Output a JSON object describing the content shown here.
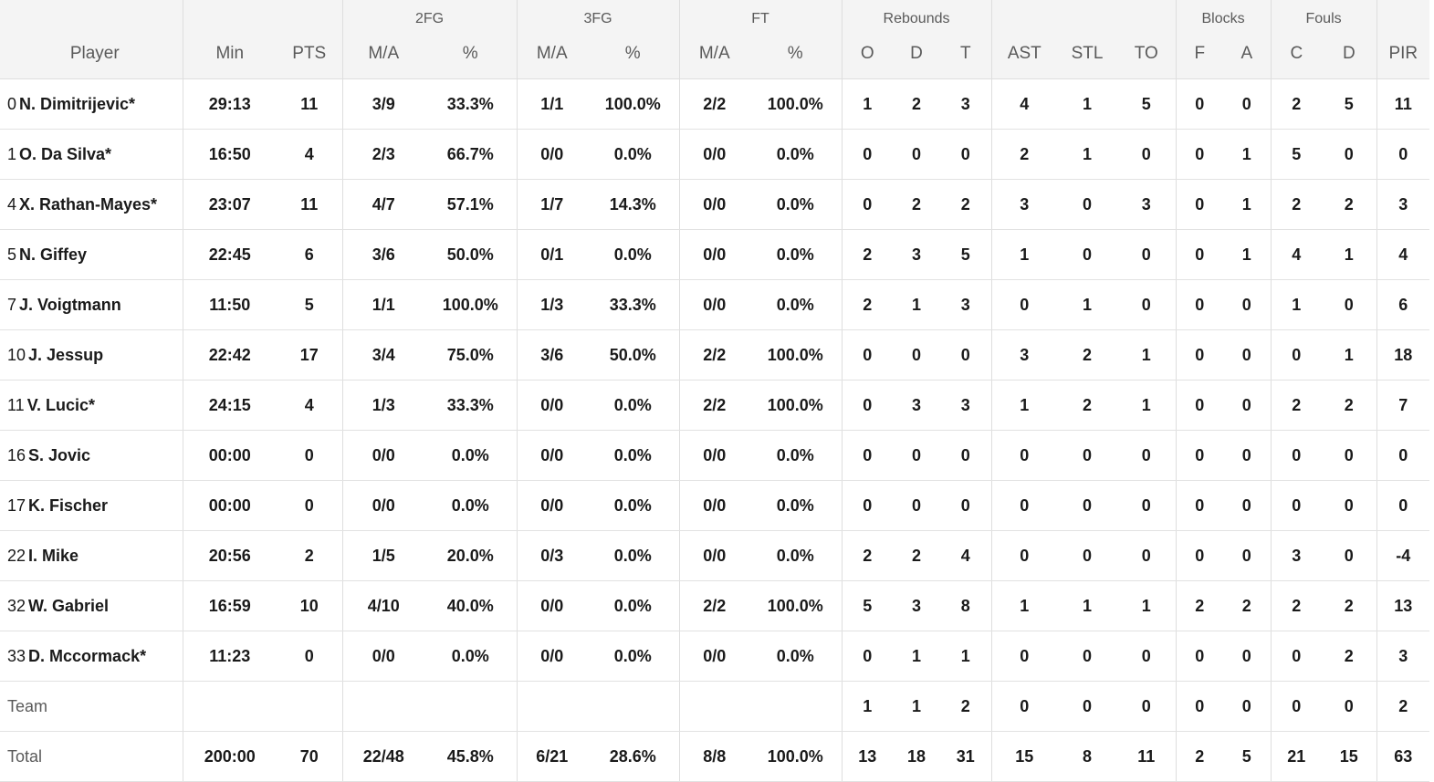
{
  "header": {
    "groups": {
      "fg2": "2FG",
      "fg3": "3FG",
      "ft": "FT",
      "rebounds": "Rebounds",
      "blocks": "Blocks",
      "fouls": "Fouls"
    },
    "columns": [
      "Player",
      "Min",
      "PTS",
      "M/A",
      "%",
      "M/A",
      "%",
      "M/A",
      "%",
      "O",
      "D",
      "T",
      "AST",
      "STL",
      "TO",
      "F",
      "A",
      "C",
      "D",
      "PIR"
    ]
  },
  "players": [
    {
      "number": "0",
      "name": "N. Dimitrijevic*",
      "stats": [
        "29:13",
        "11",
        "3/9",
        "33.3%",
        "1/1",
        "100.0%",
        "2/2",
        "100.0%",
        "1",
        "2",
        "3",
        "4",
        "1",
        "5",
        "0",
        "0",
        "2",
        "5",
        "11"
      ]
    },
    {
      "number": "1",
      "name": "O. Da Silva*",
      "stats": [
        "16:50",
        "4",
        "2/3",
        "66.7%",
        "0/0",
        "0.0%",
        "0/0",
        "0.0%",
        "0",
        "0",
        "0",
        "2",
        "1",
        "0",
        "0",
        "1",
        "5",
        "0",
        "0"
      ]
    },
    {
      "number": "4",
      "name": "X. Rathan-Mayes*",
      "stats": [
        "23:07",
        "11",
        "4/7",
        "57.1%",
        "1/7",
        "14.3%",
        "0/0",
        "0.0%",
        "0",
        "2",
        "2",
        "3",
        "0",
        "3",
        "0",
        "1",
        "2",
        "2",
        "3"
      ]
    },
    {
      "number": "5",
      "name": "N. Giffey",
      "stats": [
        "22:45",
        "6",
        "3/6",
        "50.0%",
        "0/1",
        "0.0%",
        "0/0",
        "0.0%",
        "2",
        "3",
        "5",
        "1",
        "0",
        "0",
        "0",
        "1",
        "4",
        "1",
        "4"
      ]
    },
    {
      "number": "7",
      "name": "J. Voigtmann",
      "stats": [
        "11:50",
        "5",
        "1/1",
        "100.0%",
        "1/3",
        "33.3%",
        "0/0",
        "0.0%",
        "2",
        "1",
        "3",
        "0",
        "1",
        "0",
        "0",
        "0",
        "1",
        "0",
        "6"
      ]
    },
    {
      "number": "10",
      "name": "J. Jessup",
      "stats": [
        "22:42",
        "17",
        "3/4",
        "75.0%",
        "3/6",
        "50.0%",
        "2/2",
        "100.0%",
        "0",
        "0",
        "0",
        "3",
        "2",
        "1",
        "0",
        "0",
        "0",
        "1",
        "18"
      ]
    },
    {
      "number": "11",
      "name": "V. Lucic*",
      "stats": [
        "24:15",
        "4",
        "1/3",
        "33.3%",
        "0/0",
        "0.0%",
        "2/2",
        "100.0%",
        "0",
        "3",
        "3",
        "1",
        "2",
        "1",
        "0",
        "0",
        "2",
        "2",
        "7"
      ]
    },
    {
      "number": "16",
      "name": "S. Jovic",
      "stats": [
        "00:00",
        "0",
        "0/0",
        "0.0%",
        "0/0",
        "0.0%",
        "0/0",
        "0.0%",
        "0",
        "0",
        "0",
        "0",
        "0",
        "0",
        "0",
        "0",
        "0",
        "0",
        "0"
      ]
    },
    {
      "number": "17",
      "name": "K. Fischer",
      "stats": [
        "00:00",
        "0",
        "0/0",
        "0.0%",
        "0/0",
        "0.0%",
        "0/0",
        "0.0%",
        "0",
        "0",
        "0",
        "0",
        "0",
        "0",
        "0",
        "0",
        "0",
        "0",
        "0"
      ]
    },
    {
      "number": "22",
      "name": "I. Mike",
      "stats": [
        "20:56",
        "2",
        "1/5",
        "20.0%",
        "0/3",
        "0.0%",
        "0/0",
        "0.0%",
        "2",
        "2",
        "4",
        "0",
        "0",
        "0",
        "0",
        "0",
        "3",
        "0",
        "-4"
      ]
    },
    {
      "number": "32",
      "name": "W. Gabriel",
      "stats": [
        "16:59",
        "10",
        "4/10",
        "40.0%",
        "0/0",
        "0.0%",
        "2/2",
        "100.0%",
        "5",
        "3",
        "8",
        "1",
        "1",
        "1",
        "2",
        "2",
        "2",
        "2",
        "13"
      ]
    },
    {
      "number": "33",
      "name": "D. Mccormack*",
      "stats": [
        "11:23",
        "0",
        "0/0",
        "0.0%",
        "0/0",
        "0.0%",
        "0/0",
        "0.0%",
        "0",
        "1",
        "1",
        "0",
        "0",
        "0",
        "0",
        "0",
        "0",
        "2",
        "3"
      ]
    }
  ],
  "team": {
    "label": "Team",
    "stats": [
      "",
      "",
      "",
      "",
      "",
      "",
      "",
      "",
      "1",
      "1",
      "2",
      "0",
      "0",
      "0",
      "0",
      "0",
      "0",
      "0",
      "2"
    ]
  },
  "total": {
    "label": "Total",
    "stats": [
      "200:00",
      "70",
      "22/48",
      "45.8%",
      "6/21",
      "28.6%",
      "8/8",
      "100.0%",
      "13",
      "18",
      "31",
      "15",
      "8",
      "11",
      "2",
      "5",
      "21",
      "15",
      "63"
    ]
  }
}
